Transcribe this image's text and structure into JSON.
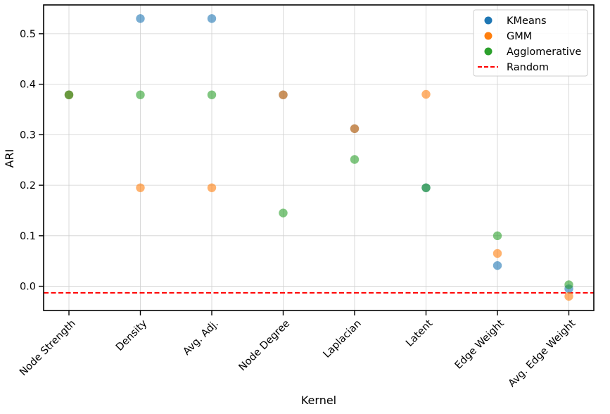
{
  "chart_data": {
    "type": "scatter",
    "title": "",
    "xlabel": "Kernel",
    "ylabel": "ARI",
    "categories": [
      "Node Strength",
      "Density",
      "Avg. Adj.",
      "Node Degree",
      "Laplacian",
      "Latent",
      "Edge Weight",
      "Avg. Edge Weight"
    ],
    "ylim": [
      -0.048,
      0.557
    ],
    "yticks": [
      0.0,
      0.1,
      0.2,
      0.3,
      0.4,
      0.5
    ],
    "ytick_labels": [
      "0.0",
      "0.1",
      "0.2",
      "0.3",
      "0.4",
      "0.5"
    ],
    "grid": true,
    "legend_position": "top-right",
    "series": [
      {
        "name": "KMeans",
        "color": "#1f77b4",
        "values": [
          0.379,
          0.53,
          0.53,
          0.379,
          0.312,
          0.195,
          0.041,
          -0.005
        ]
      },
      {
        "name": "GMM",
        "color": "#ff7f0e",
        "values": [
          0.379,
          0.195,
          0.195,
          0.379,
          0.312,
          0.38,
          0.065,
          -0.02
        ]
      },
      {
        "name": "Agglomerative",
        "color": "#2ca02c",
        "values": [
          0.379,
          0.379,
          0.379,
          0.145,
          0.251,
          0.195,
          0.1,
          0.003
        ]
      }
    ],
    "reference_line": {
      "name": "Random",
      "value": -0.013,
      "color": "#ff0000",
      "style": "dashed"
    }
  }
}
